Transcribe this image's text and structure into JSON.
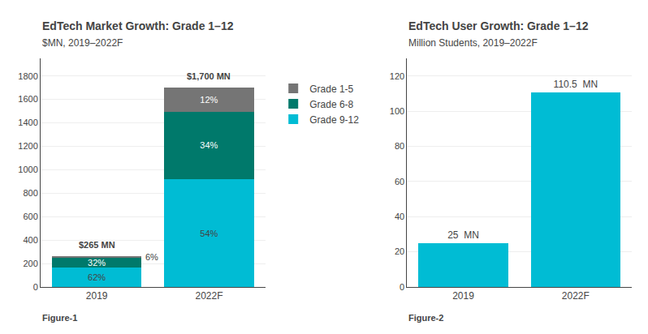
{
  "chart_data": [
    {
      "type": "bar",
      "stacked": true,
      "title": "EdTech Market Growth: Grade 1–12",
      "subtitle": "$MN, 2019–2022F",
      "categories": [
        "2019",
        "2022F"
      ],
      "series": [
        {
          "name": "Grade 9-12",
          "color": "#00BCD4",
          "values": [
            164.3,
            918.0
          ],
          "labels": [
            "62%",
            "54%"
          ]
        },
        {
          "name": "Grade 6-8",
          "color": "#00796B",
          "values": [
            84.8,
            578.0
          ],
          "labels": [
            "32%",
            "34%"
          ]
        },
        {
          "name": "Grade 1-5",
          "color": "#757575",
          "values": [
            15.9,
            204.0
          ],
          "labels": [
            "6%",
            "12%"
          ]
        }
      ],
      "annotations": [
        {
          "text": "$265 MN",
          "category": "2019"
        },
        {
          "text": "$1,700 MN",
          "category": "2022F"
        },
        {
          "text": "Figure-1"
        }
      ],
      "ylim": [
        0,
        1950
      ],
      "yticks": [
        0,
        200,
        400,
        600,
        800,
        1000,
        1200,
        1400,
        1600,
        1800
      ],
      "grid": true,
      "legend": "right"
    },
    {
      "type": "bar",
      "title": "EdTech User Growth: Grade 1–12",
      "subtitle": "Million Students, 2019–2022F",
      "categories": [
        "2019",
        "2022F"
      ],
      "values": [
        25,
        110.5
      ],
      "color": "#00BCD4",
      "data_labels": true,
      "value_labels": [
        "25  MN",
        "110.5  MN"
      ],
      "annotations": [
        {
          "text": "Figure-2"
        }
      ],
      "ylim": [
        0,
        130
      ],
      "yticks": [
        0,
        20,
        40,
        60,
        80,
        100,
        120
      ],
      "grid": true
    }
  ]
}
